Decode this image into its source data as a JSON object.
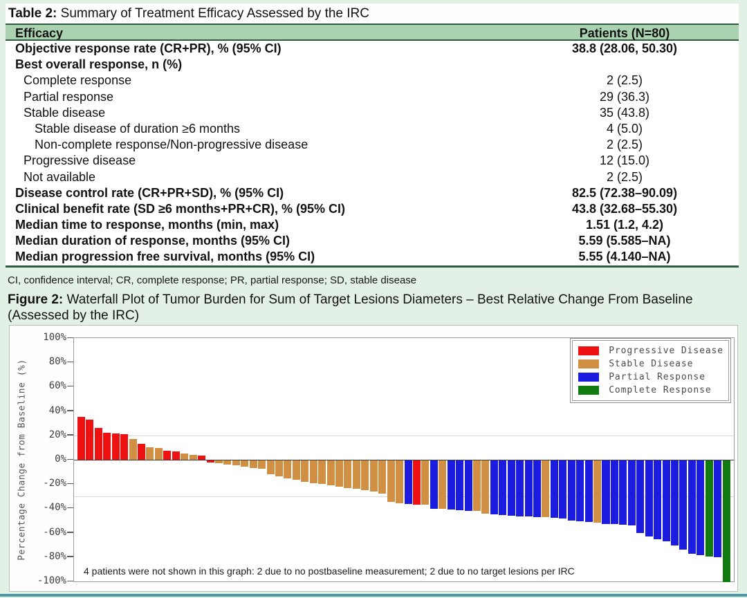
{
  "table": {
    "title_label": "Table 2:",
    "title_text": "Summary of Treatment Efficacy Assessed by the IRC",
    "header": {
      "col1": "Efficacy",
      "col2": "Patients (N=80)"
    },
    "rows": [
      {
        "label": "Objective response rate (CR+PR), % (95% CI)",
        "value": "38.8 (28.06, 50.30)",
        "bold": true,
        "indent": 0
      },
      {
        "label": "Best overall response, n (%)",
        "value": "",
        "bold": true,
        "indent": 0
      },
      {
        "label": "Complete response",
        "value": "2 (2.5)",
        "bold": false,
        "indent": 1
      },
      {
        "label": "Partial response",
        "value": "29 (36.3)",
        "bold": false,
        "indent": 1
      },
      {
        "label": "Stable disease",
        "value": "35 (43.8)",
        "bold": false,
        "indent": 1
      },
      {
        "label": "Stable disease of duration ≥6 months",
        "value": "4 (5.0)",
        "bold": false,
        "indent": 2
      },
      {
        "label": "Non-complete response/Non-progressive disease",
        "value": "2 (2.5)",
        "bold": false,
        "indent": 2
      },
      {
        "label": "Progressive disease",
        "value": "12 (15.0)",
        "bold": false,
        "indent": 1
      },
      {
        "label": "Not available",
        "value": "2 (2.5)",
        "bold": false,
        "indent": 1
      },
      {
        "label": "Disease control rate (CR+PR+SD), % (95% CI)",
        "value": "82.5 (72.38–90.09)",
        "bold": true,
        "indent": 0
      },
      {
        "label": "Clinical benefit rate (SD ≥6 months+PR+CR), % (95% CI)",
        "value": "43.8 (32.68–55.30)",
        "bold": true,
        "indent": 0
      },
      {
        "label": "Median time to response, months (min, max)",
        "value": "1.51 (1.2, 4.2)",
        "bold": true,
        "indent": 0
      },
      {
        "label": "Median duration of response, months (95% CI)",
        "value": "5.59 (5.585–NA)",
        "bold": true,
        "indent": 0
      },
      {
        "label": "Median progression free survival, months (95% CI)",
        "value": "5.55 (4.140–NA)",
        "bold": true,
        "indent": 0
      }
    ],
    "footnote": "CI, confidence interval; CR, complete response; PR, partial response; SD, stable disease"
  },
  "figure": {
    "title_label": "Figure 2:",
    "title_text": "Waterfall Plot of Tumor Burden for Sum of Target Lesions Diameters – Best Relative Change From Baseline (Assessed by the IRC)"
  },
  "chart_data": {
    "type": "bar",
    "subtype": "waterfall",
    "title": "",
    "xlabel": "",
    "ylabel": "Percentage Change from Baseline (%)",
    "ylim": [
      -100,
      100
    ],
    "ytick_step": 20,
    "ytick_suffix": "%",
    "reference_lines": [
      20,
      -30
    ],
    "legend_position": "top-right",
    "legend": [
      {
        "key": "PD",
        "label": "Progressive Disease",
        "color": "#ee1111"
      },
      {
        "key": "SD",
        "label": "Stable Disease",
        "color": "#d08f42"
      },
      {
        "key": "PR",
        "label": "Partial Response",
        "color": "#1c1ce0"
      },
      {
        "key": "CR",
        "label": "Complete Response",
        "color": "#117a11"
      }
    ],
    "note": "4 patients were not shown in this graph: 2 due to no postbaseline measurement; 2 due to no target lesions per IRC",
    "bars": [
      [
        35,
        "PD"
      ],
      [
        33,
        "PD"
      ],
      [
        26,
        "PD"
      ],
      [
        22,
        "PD"
      ],
      [
        21.5,
        "PD"
      ],
      [
        21,
        "PD"
      ],
      [
        17,
        "SD"
      ],
      [
        13,
        "PD"
      ],
      [
        10,
        "SD"
      ],
      [
        9.5,
        "SD"
      ],
      [
        7.5,
        "PD"
      ],
      [
        7,
        "PD"
      ],
      [
        5,
        "SD"
      ],
      [
        4,
        "SD"
      ],
      [
        3.5,
        "PD"
      ],
      [
        -1.5,
        "PD"
      ],
      [
        -2.5,
        "SD"
      ],
      [
        -3.5,
        "SD"
      ],
      [
        -4,
        "SD"
      ],
      [
        -5,
        "SD"
      ],
      [
        -6,
        "SD"
      ],
      [
        -7,
        "SD"
      ],
      [
        -11.5,
        "SD"
      ],
      [
        -13,
        "SD"
      ],
      [
        -14.5,
        "SD"
      ],
      [
        -16,
        "SD"
      ],
      [
        -17.5,
        "SD"
      ],
      [
        -18.5,
        "SD"
      ],
      [
        -19.5,
        "SD"
      ],
      [
        -20.5,
        "SD"
      ],
      [
        -21.5,
        "SD"
      ],
      [
        -22.5,
        "SD"
      ],
      [
        -23.5,
        "SD"
      ],
      [
        -24.5,
        "SD"
      ],
      [
        -25.5,
        "SD"
      ],
      [
        -27,
        "SD"
      ],
      [
        -34,
        "SD"
      ],
      [
        -35,
        "SD"
      ],
      [
        -35.5,
        "PR"
      ],
      [
        -36.5,
        "PD"
      ],
      [
        -36.5,
        "SD"
      ],
      [
        -40,
        "PR"
      ],
      [
        -40,
        "SD"
      ],
      [
        -40.5,
        "PR"
      ],
      [
        -41,
        "PR"
      ],
      [
        -41.5,
        "PR"
      ],
      [
        -41.5,
        "SD"
      ],
      [
        -44,
        "SD"
      ],
      [
        -44.5,
        "PR"
      ],
      [
        -45,
        "PR"
      ],
      [
        -45.5,
        "PR"
      ],
      [
        -46,
        "PR"
      ],
      [
        -46,
        "PR"
      ],
      [
        -46.5,
        "PR"
      ],
      [
        -46.5,
        "SD"
      ],
      [
        -47,
        "PR"
      ],
      [
        -47.5,
        "PR"
      ],
      [
        -49.5,
        "PR"
      ],
      [
        -50,
        "PR"
      ],
      [
        -50.5,
        "PR"
      ],
      [
        -51,
        "SD"
      ],
      [
        -52,
        "PR"
      ],
      [
        -52.5,
        "PR"
      ],
      [
        -53,
        "PR"
      ],
      [
        -53.5,
        "PR"
      ],
      [
        -59.5,
        "PR"
      ],
      [
        -62.5,
        "PR"
      ],
      [
        -65,
        "PR"
      ],
      [
        -66.5,
        "PR"
      ],
      [
        -70,
        "PR"
      ],
      [
        -73.5,
        "PR"
      ],
      [
        -76.5,
        "PR"
      ],
      [
        -78,
        "PR"
      ],
      [
        -79,
        "CR"
      ],
      [
        -79.5,
        "PR"
      ],
      [
        -100,
        "CR"
      ]
    ]
  },
  "colors": {
    "page_bg": "#e3f0e6",
    "table_header_bg": "#abd2b0",
    "table_border": "#2d5b3c",
    "progressive_disease": "#ee1111",
    "stable_disease": "#d08f42",
    "partial_response": "#1c1ce0",
    "complete_response": "#117a11",
    "bottom_rule": "#4a99a5"
  }
}
